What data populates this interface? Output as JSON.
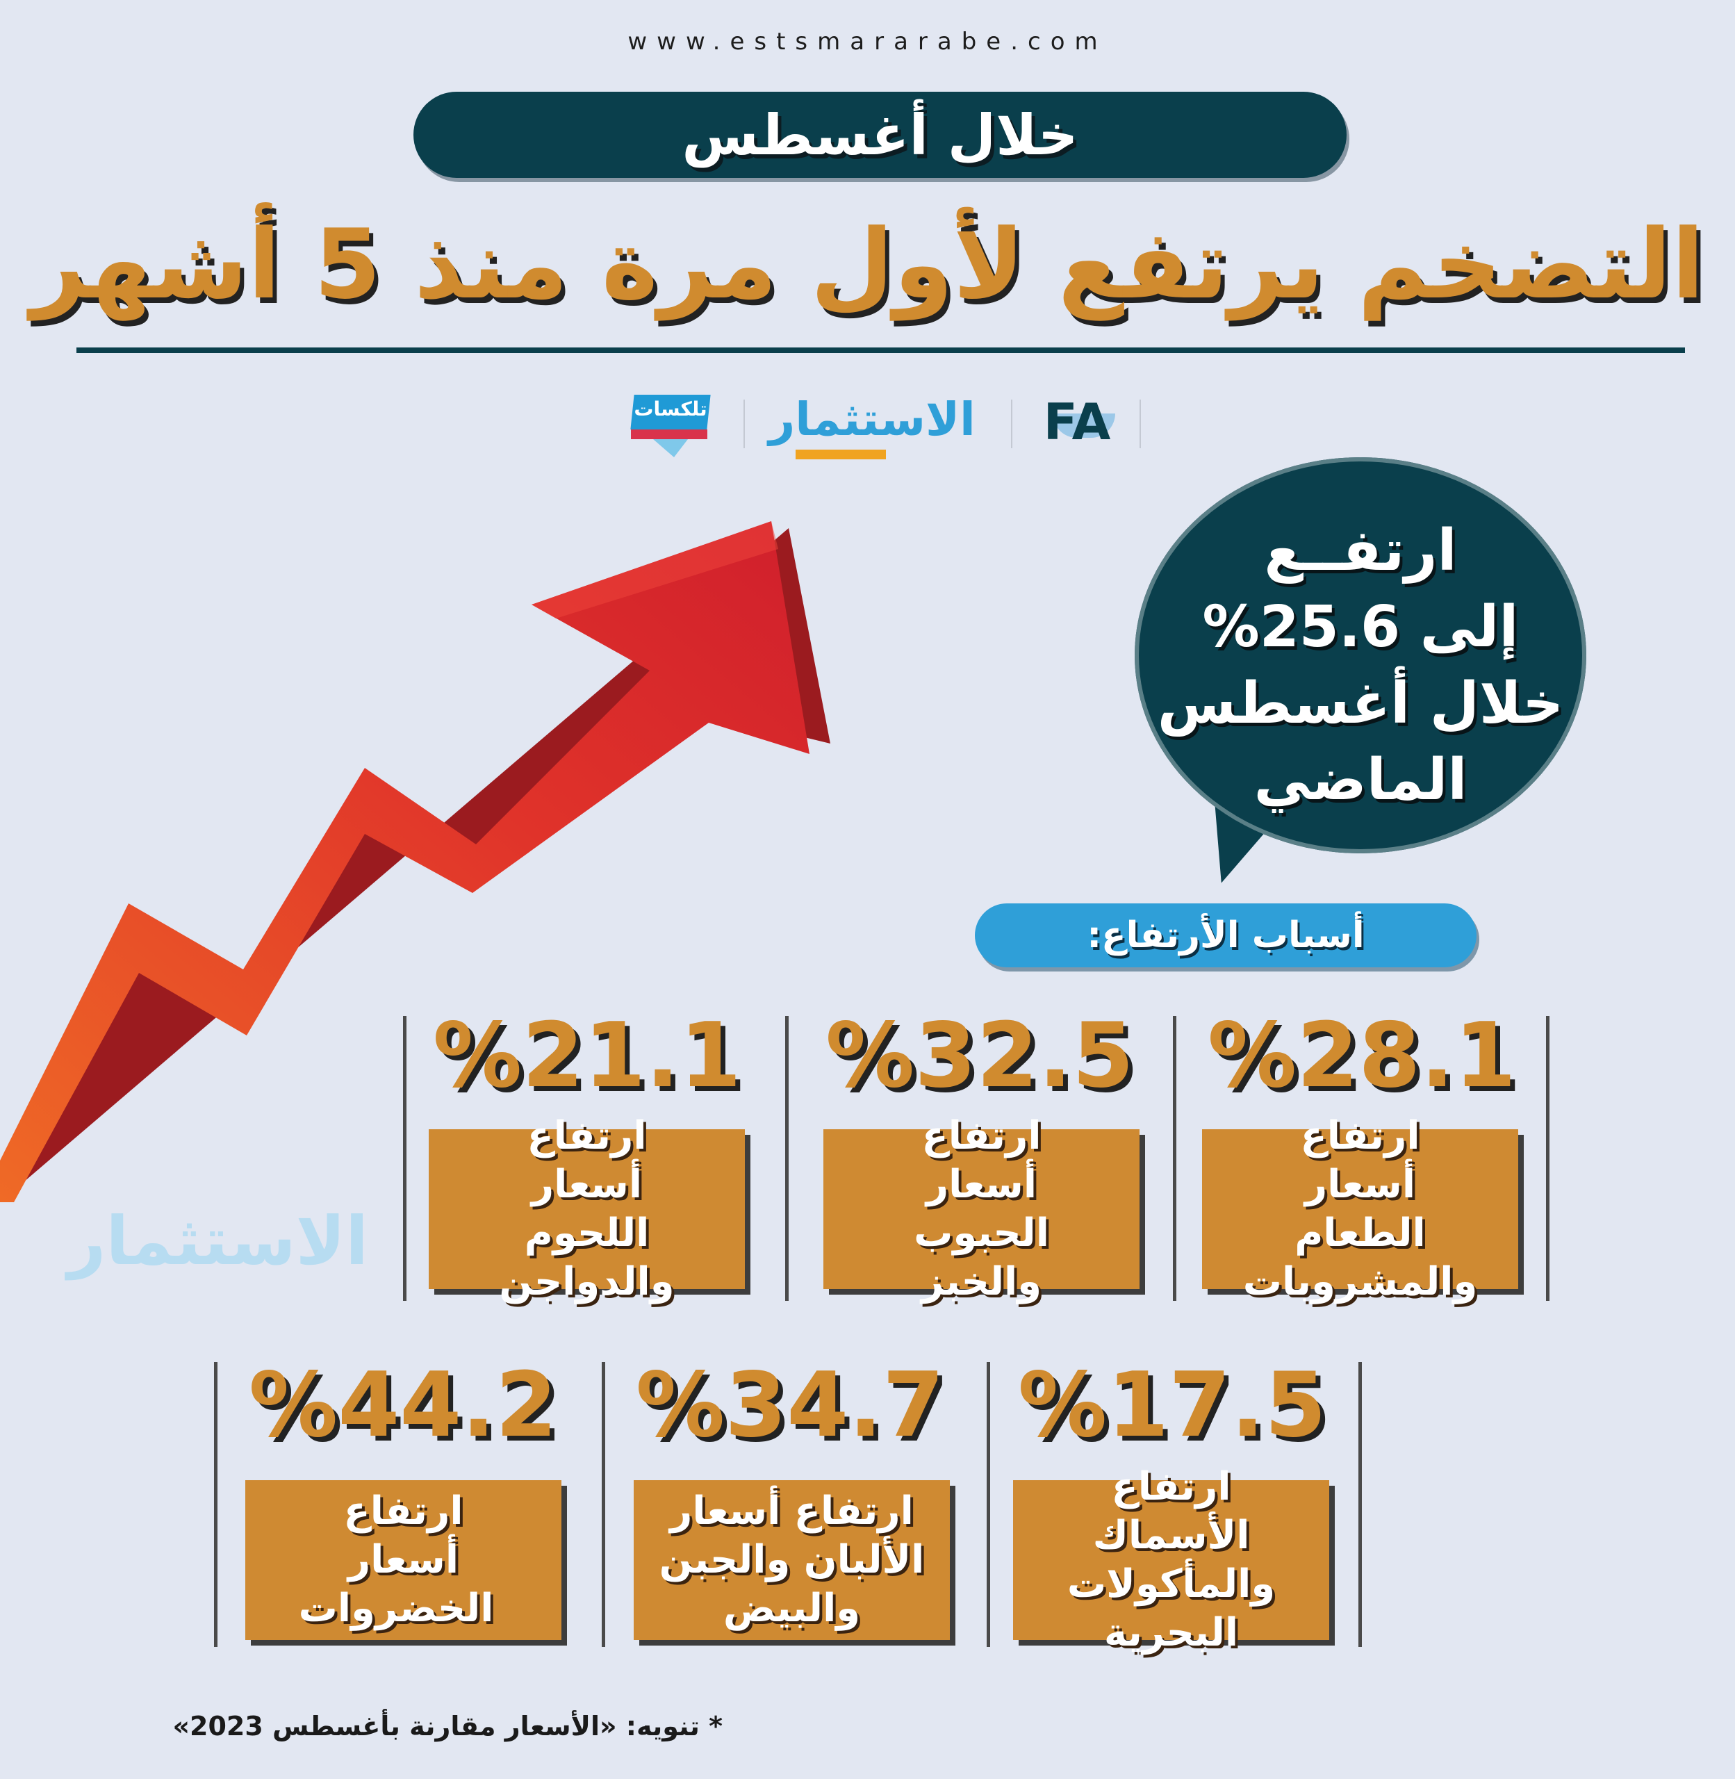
{
  "site_url": "www.estsmararabe.com",
  "header": {
    "pill_label": "خلال أغسطس",
    "headline": "التضخم يرتفع لأول مرة منذ 5 أشهر"
  },
  "logos": {
    "talksat_label": "تلكسات",
    "alestesmar_label": "الاستثمار",
    "fa_label": "FA"
  },
  "bubble": {
    "line1": "ارتفــع",
    "line2": "إلى 25.6%",
    "line3": "خلال أغسطس",
    "line4": "الماضي"
  },
  "reasons_title": "أسباب الأرتفاع:",
  "cards_row1": [
    {
      "pct": "%28.1",
      "text": "ارتفاع أسعار الطعام والمشروبات"
    },
    {
      "pct": "%32.5",
      "text": "ارتفاع أسعار الحبوب والخبز"
    },
    {
      "pct": "%21.1",
      "text": "ارتفاع أسعار اللحوم والدواجن"
    }
  ],
  "cards_row2": [
    {
      "pct": "%17.5",
      "text": "ارتفاع الأسماك والمأكولات البحرية"
    },
    {
      "pct": "%34.7",
      "text": "ارتفاع أسعار الألبان والجبن والبيض"
    },
    {
      "pct": "%44.2",
      "text": "ارتفاع أسعار الخضروات"
    }
  ],
  "watermark": "الاستثمار",
  "footnote": "* تنويه: «الأسعار مقارنة بأغسطس 2023»",
  "colors": {
    "background": "#e2e7f2",
    "dark_teal": "#0a3f4c",
    "gold": "#cf8a32",
    "blue": "#2f9fd8",
    "arrow_red": "#d4252a",
    "arrow_orange": "#e8612a"
  },
  "icons": {
    "arrow": "rising-arrow-icon"
  }
}
